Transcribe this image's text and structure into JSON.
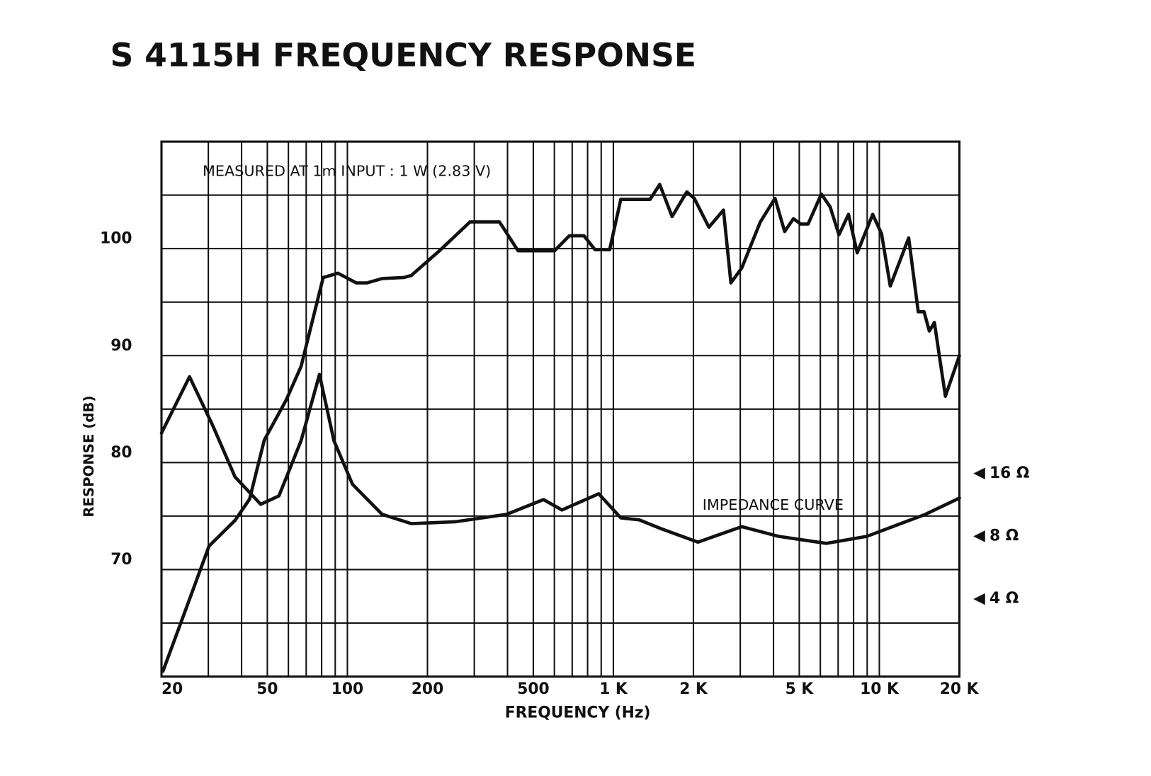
{
  "chart_data": {
    "type": "line",
    "title": "S 4115H FREQUENCY RESPONSE",
    "xlabel": "FREQUENCY (Hz)",
    "ylabel": "RESPONSE (dB)",
    "annotations": [
      "MEASURED AT 1m   INPUT : 1 W (2.83 V)"
    ],
    "xscale": "log",
    "y2scale": "log",
    "grid": true,
    "xlim": [
      20,
      20000
    ],
    "xticks": [
      20,
      50,
      100,
      200,
      500,
      {
        "value": 1000,
        "label": "1 K"
      },
      {
        "value": 2000,
        "label": "2 K"
      },
      {
        "value": 5000,
        "label": "5 K"
      },
      {
        "value": 10000,
        "label": "10 K"
      },
      {
        "value": 20000,
        "label": "20 K"
      }
    ],
    "xminor": [
      30,
      40,
      60,
      70,
      80,
      90,
      300,
      400,
      600,
      700,
      800,
      900,
      3000,
      4000,
      6000,
      7000,
      8000,
      9000
    ],
    "ylim": [
      60,
      110
    ],
    "yticks": [
      70,
      80,
      90,
      100
    ],
    "yminor": [
      65,
      75,
      85,
      95,
      105
    ],
    "y2lim": [
      1.7,
      625
    ],
    "y2ticks": [
      {
        "value": 16,
        "label": "16 Ω"
      },
      {
        "value": 8,
        "label": "8 Ω"
      },
      {
        "value": 4,
        "label": "4 Ω"
      }
    ],
    "series": [
      {
        "color": "#111111",
        "x": [
          20.25,
          24.2,
          30.2,
          37.8,
          42.9,
          48.7,
          59,
          67,
          76,
          81.1,
          92.1,
          108,
          118.7,
          135,
          163,
          174,
          224,
          289,
          373,
          438,
          601,
          683,
          775,
          853,
          968,
          1066,
          1374,
          1493,
          1663,
          1888,
          2014,
          2286,
          2595,
          2767,
          3040,
          3568,
          4052,
          4404,
          4754,
          5063,
          5397,
          6052,
          6532,
          7049,
          7656,
          8260,
          9442,
          10190,
          10990,
          12890,
          14000,
          14720,
          15410,
          16100,
          17710,
          20000
        ],
        "values": [
          60.5,
          65.7,
          72.2,
          74.6,
          76.6,
          82.1,
          85.9,
          89.0,
          94.5,
          97.3,
          97.7,
          96.8,
          96.8,
          97.2,
          97.3,
          97.5,
          99.9,
          102.5,
          102.5,
          99.8,
          99.8,
          101.2,
          101.2,
          99.9,
          99.9,
          104.6,
          104.6,
          106.0,
          103.0,
          105.3,
          104.7,
          102.0,
          103.6,
          96.8,
          98.2,
          102.5,
          104.7,
          101.6,
          102.8,
          102.3,
          102.3,
          105.1,
          103.9,
          101.3,
          103.2,
          99.6,
          103.2,
          101.4,
          96.5,
          101.0,
          94.1,
          94.1,
          92.3,
          93.1,
          86.2,
          90.0
        ]
      },
      {
        "name": "IMPEDANCE CURVE",
        "color": "#111111",
        "axis": "y2",
        "x": [
          20,
          25.5,
          31.2,
          37.8,
          47.2,
          55.3,
          67,
          78.5,
          89,
          104.5,
          135,
          174,
          255,
          397,
          546,
          641,
          881,
          1066,
          1250,
          1511,
          2080,
          3040,
          4180,
          6320,
          8980,
          14900,
          20000
        ],
        "values": [
          25.0,
          46.6,
          27.1,
          15.4,
          11.4,
          12.5,
          23.0,
          47.8,
          23.0,
          14.2,
          10.2,
          9.2,
          9.4,
          10.2,
          12.0,
          10.7,
          12.8,
          9.8,
          9.6,
          8.7,
          7.5,
          8.9,
          8.0,
          7.4,
          8.0,
          10.2,
          12.2
        ]
      }
    ]
  }
}
